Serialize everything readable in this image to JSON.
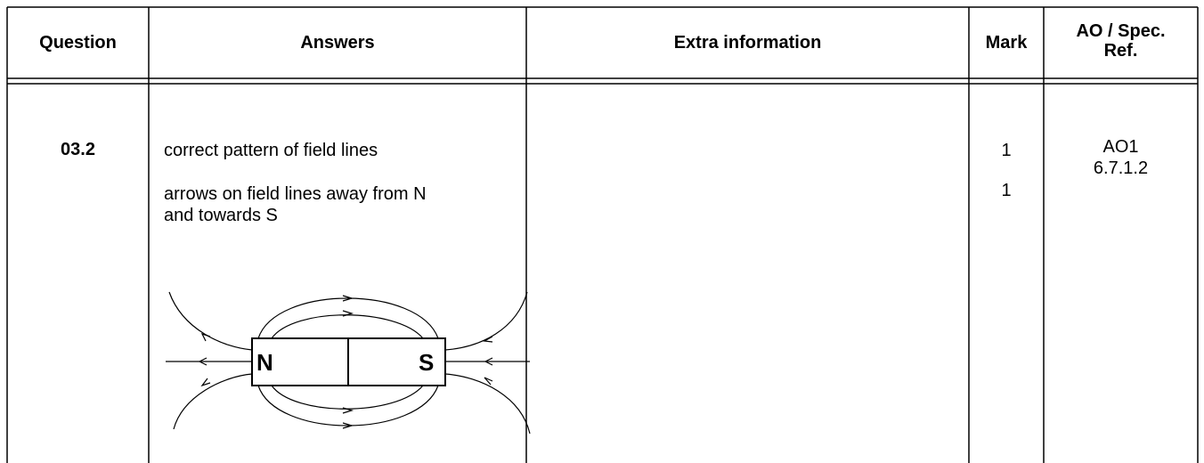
{
  "table": {
    "headers": [
      "Question",
      "Answers",
      "Extra information",
      "Mark",
      "AO / Spec. Ref."
    ],
    "rows": [
      {
        "question": "03.2",
        "answers": [
          "correct pattern of field lines",
          "arrows on field lines away from N and towards S"
        ],
        "extra_information": "",
        "marks": [
          "1",
          "1"
        ],
        "ao": [
          "AO1",
          "6.7.1.2"
        ],
        "diagram": {
          "labels": [
            "N",
            "S"
          ]
        }
      }
    ]
  }
}
